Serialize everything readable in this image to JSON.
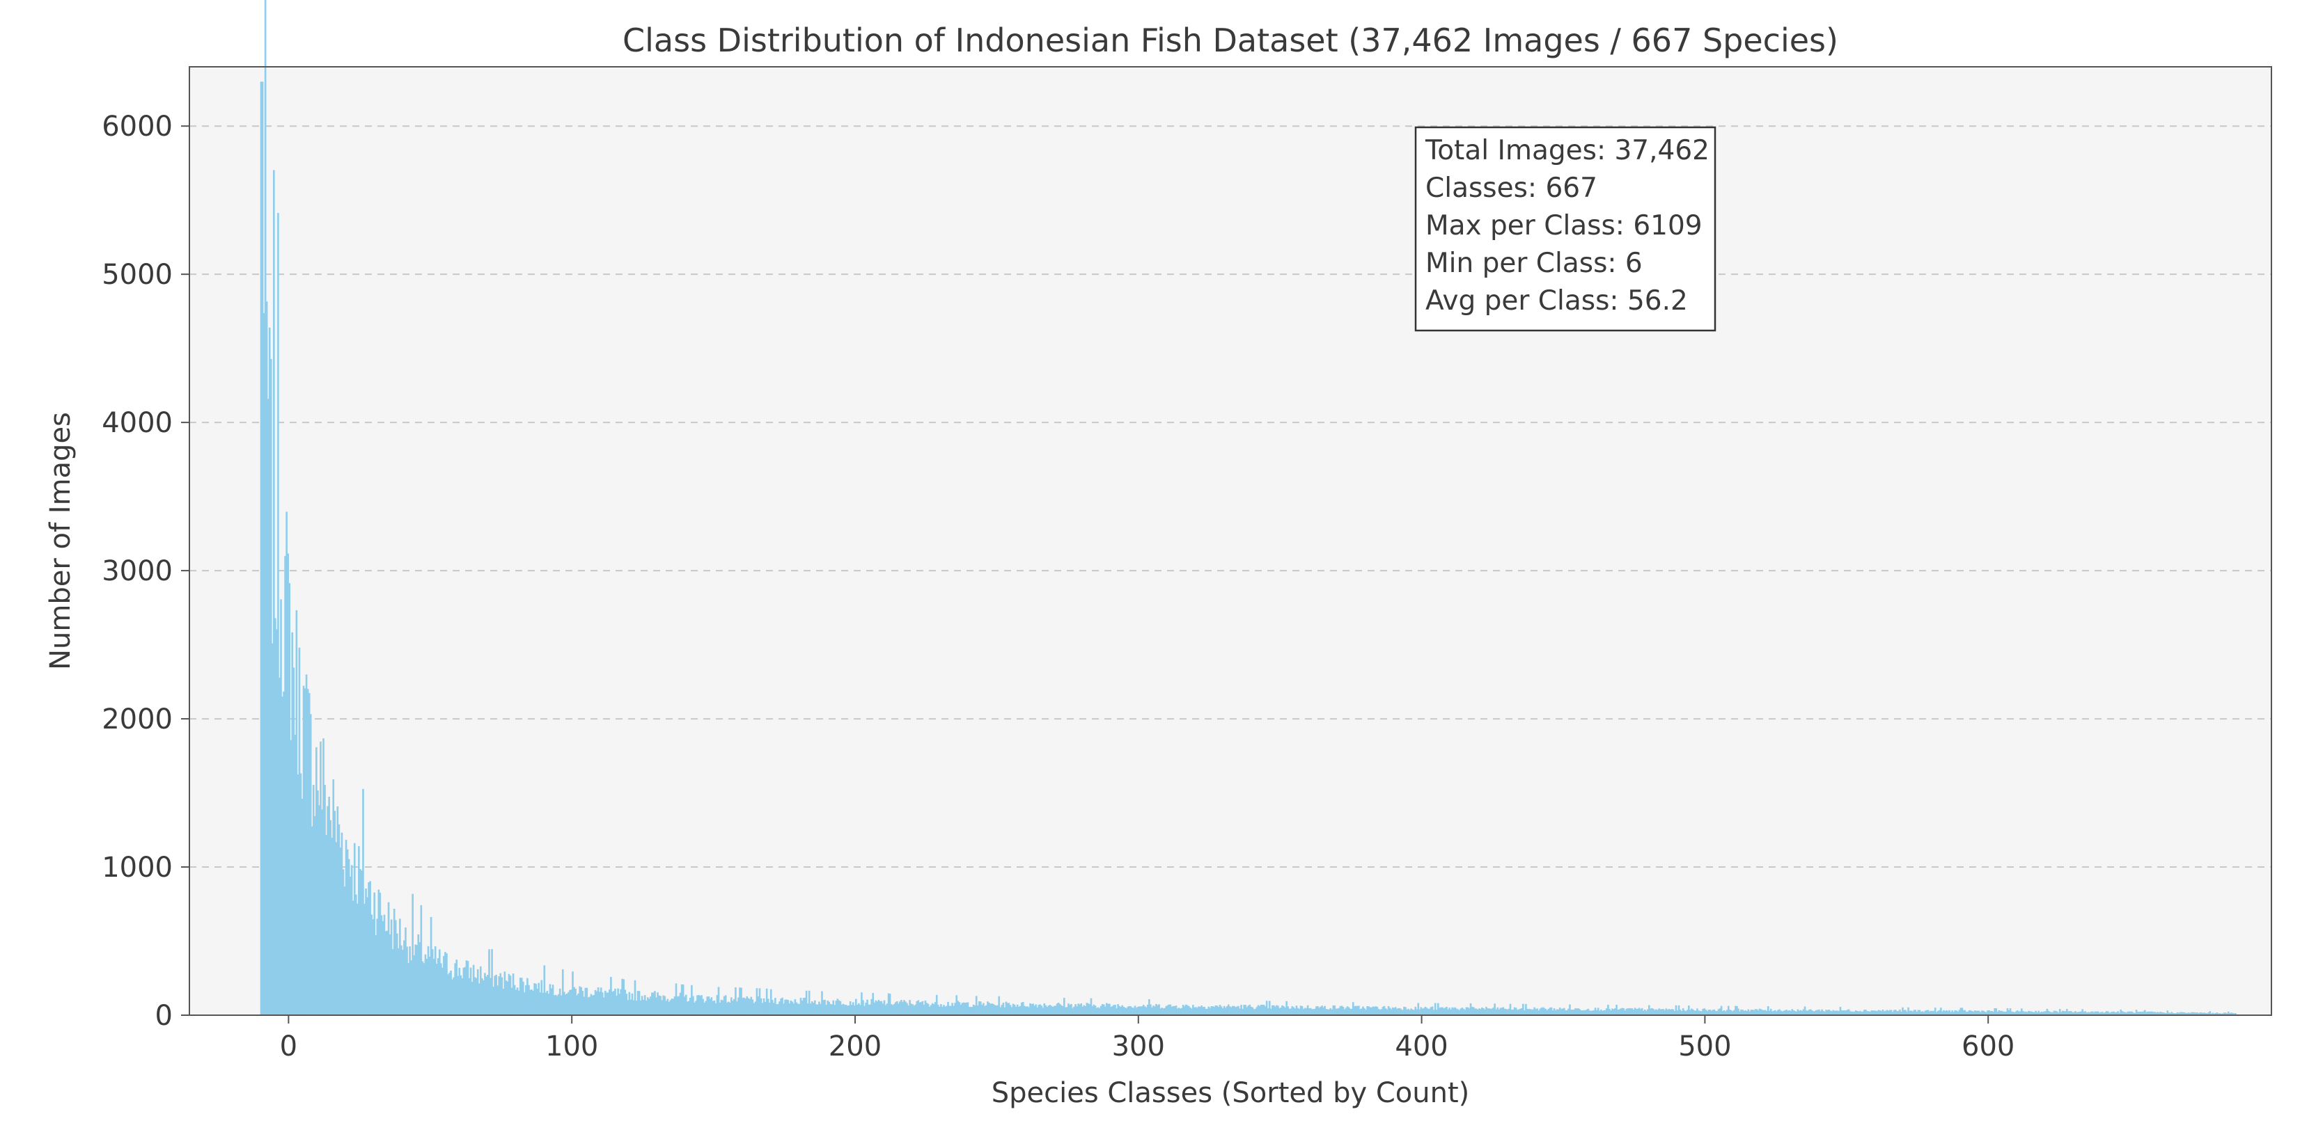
{
  "chart_data": {
    "type": "bar",
    "title": "Class Distribution of Indonesian Fish Dataset (37,462 Images / 667 Species)",
    "xlabel": "Species Classes (Sorted by Count)",
    "ylabel": "Number of Images",
    "xlim": [
      -35,
      700
    ],
    "ylim": [
      0,
      6400
    ],
    "x_ticks": [
      0,
      100,
      200,
      300,
      400,
      500,
      600
    ],
    "y_ticks": [
      0,
      1000,
      2000,
      3000,
      4000,
      5000,
      6000
    ],
    "x_tick_labels": [
      "0",
      "100",
      "200",
      "300",
      400,
      "500",
      "600"
    ],
    "y_tick_labels": [
      "0",
      "1000",
      "2000",
      "3000",
      "4000",
      "5000",
      "6000"
    ],
    "grid": "horizontal dashed",
    "bar_color": "#8fcdeb",
    "annotation": {
      "lines": [
        "Total Images: 37,462",
        "Classes: 667",
        "Max per Class: 6109",
        "Min per Class: 6",
        "Avg per Class: 56.2"
      ],
      "placement": "upper-center-right"
    },
    "profile": {
      "x_start": -10,
      "x_end": 687,
      "anchors": [
        [
          -10,
          6300
        ],
        [
          -8,
          5650
        ],
        [
          -6,
          4300
        ],
        [
          -4,
          4020
        ],
        [
          -2,
          3750
        ],
        [
          0,
          3300
        ],
        [
          2,
          2950
        ],
        [
          4,
          2650
        ],
        [
          6,
          2450
        ],
        [
          8,
          2250
        ],
        [
          10,
          2100
        ],
        [
          12,
          1980
        ],
        [
          15,
          1750
        ],
        [
          18,
          1550
        ],
        [
          20,
          1450
        ],
        [
          25,
          1200
        ],
        [
          30,
          1000
        ],
        [
          35,
          820
        ],
        [
          40,
          680
        ],
        [
          45,
          580
        ],
        [
          50,
          500
        ],
        [
          60,
          400
        ],
        [
          70,
          340
        ],
        [
          80,
          290
        ],
        [
          90,
          250
        ],
        [
          100,
          220
        ],
        [
          120,
          180
        ],
        [
          150,
          145
        ],
        [
          200,
          115
        ],
        [
          250,
          95
        ],
        [
          300,
          82
        ],
        [
          350,
          72
        ],
        [
          400,
          62
        ],
        [
          450,
          55
        ],
        [
          500,
          48
        ],
        [
          550,
          42
        ],
        [
          600,
          36
        ],
        [
          650,
          28
        ],
        [
          687,
          18
        ]
      ]
    }
  }
}
